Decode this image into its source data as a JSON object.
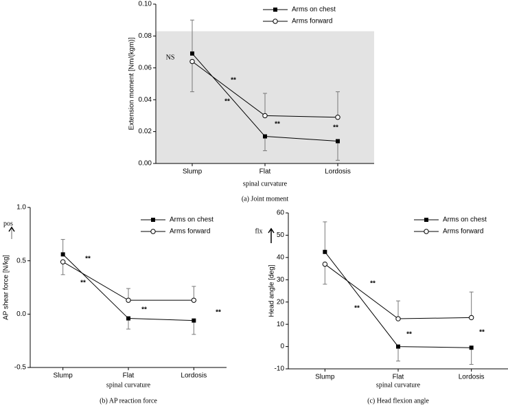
{
  "chart_data": [
    {
      "type": "line",
      "title": "(a) Joint moment",
      "x_label": "spinal curvature",
      "y_label": "Extension moment [Nm/(kgm)]",
      "categories": [
        "Slump",
        "Flat",
        "Lordosis"
      ],
      "ylim": [
        0,
        0.1
      ],
      "yticks": [
        {
          "value": 0,
          "label": "0.00"
        },
        {
          "value": 0.02,
          "label": "0.02"
        },
        {
          "value": 0.04,
          "label": "0.04"
        },
        {
          "value": 0.06,
          "label": "0.06"
        },
        {
          "value": 0.08,
          "label": "0.08"
        },
        {
          "value": 0.1,
          "label": "0.10"
        }
      ],
      "series": [
        {
          "name": "Arms on chest",
          "color": "#000000",
          "marker": "square",
          "values": [
            0.069,
            0.017,
            0.014
          ],
          "errors": [
            0.021,
            0.009,
            0.012
          ]
        },
        {
          "name": "Arms forward",
          "color": "#000000",
          "marker": "circle",
          "values": [
            0.064,
            0.03,
            0.029
          ],
          "errors": [
            0.019,
            0.014,
            0.016
          ]
        }
      ],
      "annotations": [
        "NS",
        "**",
        "**",
        "**",
        "**"
      ]
    },
    {
      "type": "line",
      "title": "(b) AP reaction force",
      "x_label": "spinal curvature",
      "y_label": "AP shear force [N/kg]",
      "categories": [
        "Slump",
        "Flat",
        "Lordosis"
      ],
      "ylim": [
        -0.5,
        1.0
      ],
      "yticks": [
        {
          "value": -0.5,
          "label": "-0.5"
        },
        {
          "value": 0,
          "label": "0.0"
        },
        {
          "value": 0.5,
          "label": "0.5"
        },
        {
          "value": 1.0,
          "label": "1.0"
        }
      ],
      "series": [
        {
          "name": "Arms on chest",
          "color": "#000000",
          "marker": "square",
          "values": [
            0.56,
            -0.04,
            -0.06
          ],
          "errors": [
            0.14,
            0.1,
            0.13
          ]
        },
        {
          "name": "Arms forward",
          "color": "#000000",
          "marker": "circle",
          "values": [
            0.49,
            0.13,
            0.13
          ],
          "errors": [
            0.12,
            0.11,
            0.13
          ]
        }
      ],
      "annotations": [
        "pos",
        "**",
        "**",
        "**",
        "**"
      ]
    },
    {
      "type": "line",
      "title": "(c) Head flexion angle",
      "x_label": "spinal curvature",
      "y_label": "Head angle [deg]",
      "categories": [
        "Slump",
        "Flat",
        "Lordosis"
      ],
      "ylim": [
        -10,
        60
      ],
      "yticks": [
        -10,
        0,
        10,
        20,
        30,
        40,
        50,
        60
      ],
      "series": [
        {
          "name": "Arms on chest",
          "color": "#000000",
          "marker": "square",
          "values": [
            42.5,
            0,
            -0.5
          ],
          "errors": [
            13.5,
            6.5,
            7.5
          ]
        },
        {
          "name": "Arms forward",
          "color": "#000000",
          "marker": "circle",
          "values": [
            37,
            12.5,
            13
          ],
          "errors": [
            9,
            8,
            11.5
          ]
        }
      ],
      "annotations": [
        "flx",
        "**",
        "**",
        "**",
        "**"
      ]
    }
  ]
}
